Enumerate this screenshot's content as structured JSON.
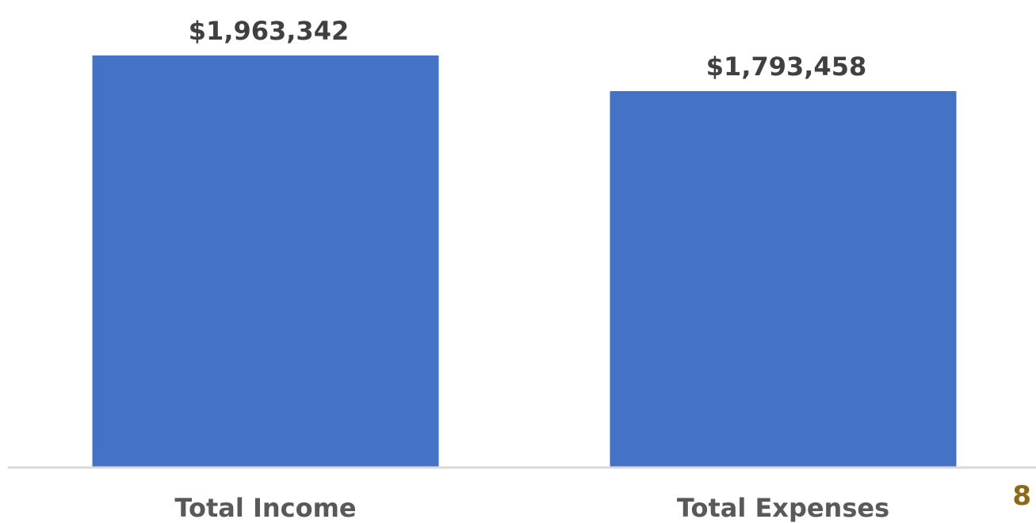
{
  "chart_data": {
    "type": "bar",
    "categories": [
      "Total Income",
      "Total Expenses"
    ],
    "values": [
      1963342,
      1793458
    ],
    "data_labels": [
      "$1,963,342",
      "$1,793,458"
    ],
    "title": "",
    "xlabel": "",
    "ylabel": "",
    "ylim": [
      0,
      1963342
    ],
    "grid": false,
    "legend": "none"
  },
  "colors": {
    "bar": "#4472C4",
    "axis": "#D9D9D9",
    "page_number": "#8A6A14"
  },
  "page": {
    "number": "8"
  }
}
